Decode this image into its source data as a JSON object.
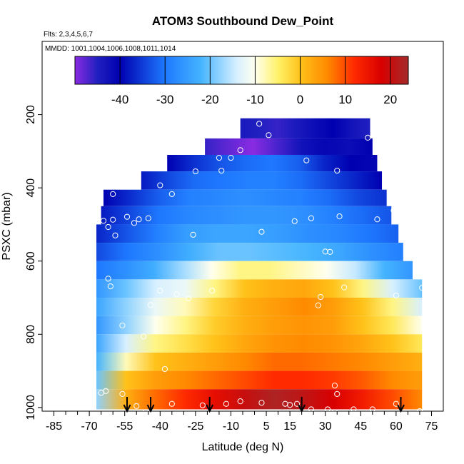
{
  "chart_data": {
    "type": "heatmap",
    "title": "ATOM3 Southbound Dew_Point",
    "subtitle_flights": "Flts: 2,3,4,5,6,7",
    "subtitle_dates": "MMDD: 1001,1004,1006,1008,1011,1014",
    "xlabel": "Latitude (deg N)",
    "ylabel": "PSXC (mbar)",
    "xlim": [
      -90,
      80
    ],
    "ylim": [
      1010,
      0
    ],
    "x_ticks": [
      -85,
      -70,
      -55,
      -40,
      -25,
      -10,
      5,
      15,
      30,
      45,
      60,
      75
    ],
    "x_tick_labels": [
      "-85",
      "-70",
      "-55",
      "-40",
      "-25",
      "-10",
      "5",
      "15",
      "30",
      "45",
      "60",
      "75"
    ],
    "y_ticks": [
      200,
      400,
      600,
      800,
      1000
    ],
    "y_tick_labels": [
      "200",
      "400",
      "600",
      "800",
      "1000"
    ],
    "colorbar": {
      "range": [
        -50,
        24
      ],
      "ticks": [
        -40,
        -30,
        -20,
        -10,
        0,
        10,
        20
      ],
      "tick_labels": [
        "-40",
        "-30",
        "-20",
        "-10",
        "0",
        "10",
        "20"
      ],
      "stops": [
        {
          "v": -50,
          "c": "#8a2be2"
        },
        {
          "v": -45,
          "c": "#2020c0"
        },
        {
          "v": -40,
          "c": "#0000b0"
        },
        {
          "v": -30,
          "c": "#1e78ff"
        },
        {
          "v": -22,
          "c": "#45b4ff"
        },
        {
          "v": -14,
          "c": "#d8f0ff"
        },
        {
          "v": -10,
          "c": "#ffffee"
        },
        {
          "v": -5,
          "c": "#fff26a"
        },
        {
          "v": 0,
          "c": "#ffc21a"
        },
        {
          "v": 6,
          "c": "#ff8a00"
        },
        {
          "v": 12,
          "c": "#ff2a00"
        },
        {
          "v": 18,
          "c": "#d80000"
        },
        {
          "v": 24,
          "c": "#a52a2a"
        }
      ]
    },
    "bands": [
      {
        "p_top": 210,
        "p_bot": 265,
        "lat_min": -6,
        "lat_max": 49,
        "values": [
          -44,
          -45,
          -46,
          -44,
          -42,
          -40,
          -43,
          -45
        ]
      },
      {
        "p_top": 265,
        "p_bot": 310,
        "lat_min": -21,
        "lat_max": 50,
        "values": [
          -46,
          -48,
          -50,
          -47,
          -43,
          -41,
          -42,
          -40
        ]
      },
      {
        "p_top": 310,
        "p_bot": 355,
        "lat_min": -37,
        "lat_max": 52,
        "values": [
          -40,
          -36,
          -33,
          -31,
          -30,
          -32,
          -37,
          -40,
          -41
        ]
      },
      {
        "p_top": 355,
        "p_bot": 405,
        "lat_min": -48,
        "lat_max": 54,
        "values": [
          -38,
          -34,
          -31,
          -30,
          -29,
          -29,
          -31,
          -34,
          -37,
          -40
        ]
      },
      {
        "p_top": 405,
        "p_bot": 450,
        "lat_min": -64,
        "lat_max": 56,
        "values": [
          -40,
          -36,
          -32,
          -29,
          -28,
          -27,
          -28,
          -29,
          -31,
          -34,
          -36
        ]
      },
      {
        "p_top": 450,
        "p_bot": 500,
        "lat_min": -65,
        "lat_max": 58,
        "values": [
          -38,
          -34,
          -30,
          -28,
          -27,
          -26,
          -26,
          -27,
          -29,
          -31,
          -33
        ]
      },
      {
        "p_top": 500,
        "p_bot": 550,
        "lat_min": -67,
        "lat_max": 61,
        "values": [
          -37,
          -33,
          -29,
          -25,
          -24,
          -24,
          -25,
          -27,
          -28,
          -30,
          -32
        ]
      },
      {
        "p_top": 550,
        "p_bot": 600,
        "lat_min": -67,
        "lat_max": 63,
        "values": [
          -34,
          -30,
          -27,
          -23,
          -20,
          -20,
          -21,
          -22,
          -24,
          -27,
          -29
        ]
      },
      {
        "p_top": 600,
        "p_bot": 650,
        "lat_min": -67,
        "lat_max": 67,
        "values": [
          -30,
          -27,
          -23,
          -17,
          -10,
          -6,
          -6,
          -8,
          -10,
          -15,
          -22,
          -26
        ]
      },
      {
        "p_top": 650,
        "p_bot": 700,
        "lat_min": -67,
        "lat_max": 71,
        "values": [
          -26,
          -20,
          -14,
          -12,
          -6,
          0,
          2,
          3,
          0,
          -6,
          -14,
          -20
        ]
      },
      {
        "p_top": 700,
        "p_bot": 750,
        "lat_min": -67,
        "lat_max": 71,
        "values": [
          -24,
          -18,
          -12,
          -8,
          -2,
          2,
          4,
          6,
          4,
          0,
          -6,
          -14
        ]
      },
      {
        "p_top": 750,
        "p_bot": 800,
        "lat_min": -67,
        "lat_max": 71,
        "values": [
          -26,
          -18,
          -10,
          -6,
          -1,
          2,
          4,
          5,
          4,
          0,
          -4,
          -10
        ]
      },
      {
        "p_top": 800,
        "p_bot": 850,
        "lat_min": -67,
        "lat_max": 71,
        "values": [
          -24,
          -14,
          -6,
          -3,
          0,
          3,
          5,
          6,
          5,
          3,
          0,
          -4
        ]
      },
      {
        "p_top": 850,
        "p_bot": 900,
        "lat_min": -67,
        "lat_max": 71,
        "values": [
          -22,
          -8,
          0,
          2,
          4,
          6,
          8,
          8,
          7,
          6,
          4,
          2
        ]
      },
      {
        "p_top": 900,
        "p_bot": 950,
        "lat_min": -67,
        "lat_max": 71,
        "values": [
          -20,
          0,
          4,
          6,
          8,
          10,
          12,
          12,
          11,
          9,
          6,
          4
        ]
      },
      {
        "p_top": 950,
        "p_bot": 1005,
        "lat_min": -67,
        "lat_max": 71,
        "values": [
          -18,
          2,
          8,
          12,
          16,
          20,
          23,
          21,
          18,
          14,
          10,
          6
        ]
      }
    ],
    "sample_points": [
      {
        "lat": -10,
        "p": 318
      },
      {
        "lat": -15,
        "p": 318
      },
      {
        "lat": -6,
        "p": 297
      },
      {
        "lat": 6,
        "p": 256
      },
      {
        "lat": 2,
        "p": 225
      },
      {
        "lat": 48,
        "p": 263
      },
      {
        "lat": 22,
        "p": 325
      },
      {
        "lat": -25,
        "p": 355
      },
      {
        "lat": -14,
        "p": 353
      },
      {
        "lat": 35,
        "p": 353
      },
      {
        "lat": -40,
        "p": 393
      },
      {
        "lat": -60,
        "p": 417
      },
      {
        "lat": -35,
        "p": 417
      },
      {
        "lat": -68,
        "p": 490
      },
      {
        "lat": -64,
        "p": 490
      },
      {
        "lat": -60,
        "p": 487
      },
      {
        "lat": -54,
        "p": 479
      },
      {
        "lat": -49,
        "p": 486
      },
      {
        "lat": -45,
        "p": 483
      },
      {
        "lat": -51,
        "p": 496
      },
      {
        "lat": -62,
        "p": 507
      },
      {
        "lat": -59,
        "p": 530
      },
      {
        "lat": -26,
        "p": 528
      },
      {
        "lat": 3,
        "p": 520
      },
      {
        "lat": 17,
        "p": 491
      },
      {
        "lat": 24,
        "p": 483
      },
      {
        "lat": 36,
        "p": 478
      },
      {
        "lat": 52,
        "p": 486
      },
      {
        "lat": 59,
        "p": 462
      },
      {
        "lat": 30,
        "p": 574
      },
      {
        "lat": 32,
        "p": 575
      },
      {
        "lat": -62,
        "p": 648
      },
      {
        "lat": -33,
        "p": 691
      },
      {
        "lat": -28,
        "p": 702
      },
      {
        "lat": 27,
        "p": 721
      },
      {
        "lat": 38,
        "p": 672
      },
      {
        "lat": 60,
        "p": 694
      },
      {
        "lat": -61,
        "p": 669
      },
      {
        "lat": -44,
        "p": 720
      },
      {
        "lat": -40,
        "p": 681
      },
      {
        "lat": -18,
        "p": 681
      },
      {
        "lat": 28,
        "p": 698
      },
      {
        "lat": -56,
        "p": 776
      },
      {
        "lat": -47,
        "p": 806
      },
      {
        "lat": -38,
        "p": 895
      },
      {
        "lat": -65,
        "p": 960
      },
      {
        "lat": -63,
        "p": 955
      },
      {
        "lat": -56,
        "p": 963
      },
      {
        "lat": -50,
        "p": 996
      },
      {
        "lat": -46,
        "p": 1013
      },
      {
        "lat": -35,
        "p": 990
      },
      {
        "lat": -22,
        "p": 994
      },
      {
        "lat": -12,
        "p": 990
      },
      {
        "lat": -6,
        "p": 983
      },
      {
        "lat": 3,
        "p": 987
      },
      {
        "lat": 13,
        "p": 990
      },
      {
        "lat": 15,
        "p": 993
      },
      {
        "lat": 18,
        "p": 990
      },
      {
        "lat": 24,
        "p": 1005
      },
      {
        "lat": 31,
        "p": 1005
      },
      {
        "lat": 34,
        "p": 1013
      },
      {
        "lat": 42,
        "p": 1005
      },
      {
        "lat": 50,
        "p": 1005
      },
      {
        "lat": 60,
        "p": 990
      },
      {
        "lat": 34,
        "p": 940
      },
      {
        "lat": 35,
        "p": 963
      },
      {
        "lat": 70,
        "p": 1010
      },
      {
        "lat": 71,
        "p": 673
      }
    ],
    "flight_arrow_lats": [
      -54,
      -44,
      -19,
      20,
      62
    ]
  }
}
